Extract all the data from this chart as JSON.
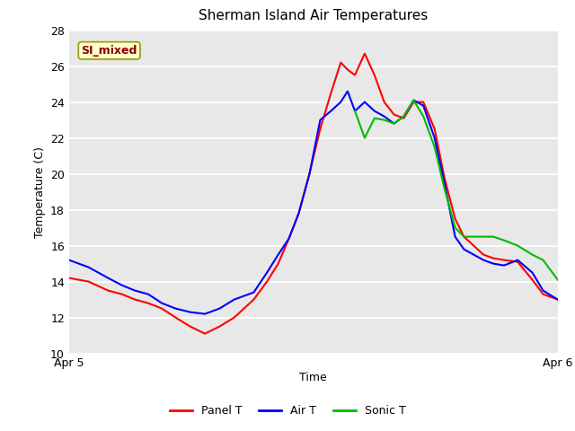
{
  "title": "Sherman Island Air Temperatures",
  "xlabel": "Time",
  "ylabel": "Temperature (C)",
  "ylim": [
    10,
    28
  ],
  "yticks": [
    10,
    12,
    14,
    16,
    18,
    20,
    22,
    24,
    26,
    28
  ],
  "xlim": [
    0,
    1
  ],
  "xtick_labels": [
    "Apr 5",
    "Apr 6"
  ],
  "xtick_positions": [
    0.0,
    1.0
  ],
  "fig_bg_color": "#ffffff",
  "axes_bg_color": "#e8e8e8",
  "watermark_text": "SI_mixed",
  "watermark_color": "#8b0000",
  "watermark_bg": "#ffffcc",
  "watermark_edge": "#999900",
  "legend_entries": [
    "Panel T",
    "Air T",
    "Sonic T"
  ],
  "legend_colors": [
    "#ff0000",
    "#0000ff",
    "#00bb00"
  ],
  "line_width": 1.5,
  "panel_T_x": [
    0.0,
    0.04,
    0.08,
    0.108,
    0.135,
    0.162,
    0.19,
    0.218,
    0.248,
    0.278,
    0.308,
    0.338,
    0.358,
    0.378,
    0.405,
    0.428,
    0.45,
    0.47,
    0.492,
    0.514,
    0.536,
    0.556,
    0.57,
    0.585,
    0.605,
    0.625,
    0.645,
    0.665,
    0.685,
    0.705,
    0.725,
    0.748,
    0.768,
    0.79,
    0.808,
    0.828,
    0.848,
    0.868,
    0.89,
    0.918,
    0.948,
    0.97,
    1.0
  ],
  "panel_T_y": [
    14.2,
    14.0,
    13.5,
    13.3,
    13.0,
    12.8,
    12.5,
    12.0,
    11.5,
    11.1,
    11.5,
    12.0,
    12.5,
    13.0,
    14.0,
    15.0,
    16.4,
    17.8,
    20.0,
    22.5,
    24.5,
    26.2,
    25.8,
    25.5,
    26.7,
    25.5,
    24.0,
    23.3,
    23.1,
    24.0,
    24.0,
    22.5,
    19.8,
    17.5,
    16.5,
    16.0,
    15.5,
    15.3,
    15.2,
    15.1,
    14.1,
    13.3,
    13.0
  ],
  "air_T_x": [
    0.0,
    0.04,
    0.08,
    0.108,
    0.135,
    0.162,
    0.19,
    0.218,
    0.248,
    0.278,
    0.308,
    0.338,
    0.358,
    0.378,
    0.405,
    0.428,
    0.45,
    0.47,
    0.492,
    0.514,
    0.536,
    0.556,
    0.57,
    0.585,
    0.605,
    0.625,
    0.645,
    0.665,
    0.685,
    0.705,
    0.725,
    0.748,
    0.768,
    0.79,
    0.808,
    0.828,
    0.848,
    0.868,
    0.89,
    0.918,
    0.948,
    0.97,
    1.0
  ],
  "air_T_y": [
    15.2,
    14.8,
    14.2,
    13.8,
    13.5,
    13.3,
    12.8,
    12.5,
    12.3,
    12.2,
    12.5,
    13.0,
    13.2,
    13.4,
    14.5,
    15.5,
    16.4,
    17.8,
    20.0,
    23.0,
    23.5,
    24.0,
    24.6,
    23.5,
    24.0,
    23.5,
    23.2,
    22.8,
    23.2,
    24.1,
    23.8,
    22.0,
    19.5,
    16.5,
    15.8,
    15.5,
    15.2,
    15.0,
    14.9,
    15.2,
    14.5,
    13.5,
    13.0
  ],
  "sonic_T_x": [
    0.585,
    0.605,
    0.625,
    0.645,
    0.665,
    0.685,
    0.705,
    0.725,
    0.748,
    0.768,
    0.79,
    0.808,
    0.828,
    0.848,
    0.868,
    0.89,
    0.918,
    0.948,
    0.97,
    1.0
  ],
  "sonic_T_y": [
    23.5,
    22.0,
    23.1,
    23.0,
    22.8,
    23.2,
    24.1,
    23.2,
    21.5,
    19.2,
    17.0,
    16.5,
    16.5,
    16.5,
    16.5,
    16.3,
    16.0,
    15.5,
    15.2,
    14.1
  ]
}
